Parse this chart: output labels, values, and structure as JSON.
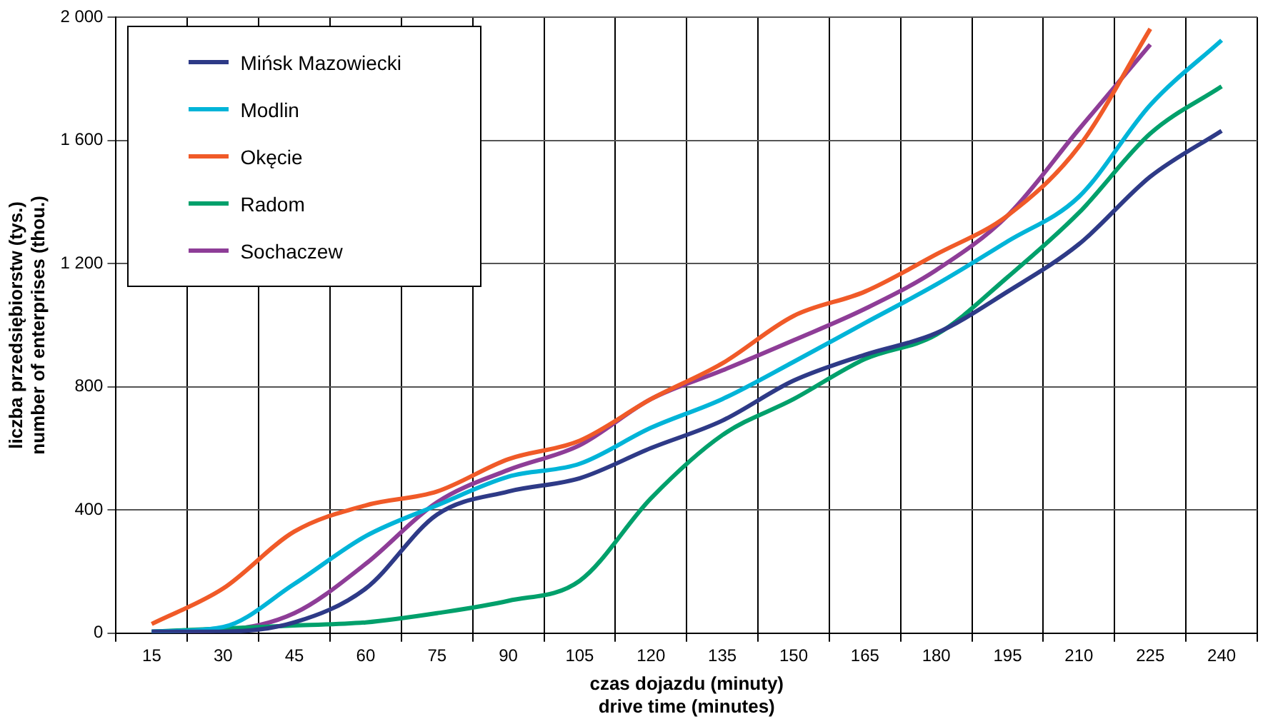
{
  "chart_data": {
    "type": "line",
    "xlabel": "czas dojazdu (minuty)\ndrive time (minutes)",
    "ylabel": "liczba przedsiębiorstw (tys.)\nnumber of enterprises (thou.)",
    "categories": [
      "15",
      "30",
      "45",
      "60",
      "75",
      "90",
      "105",
      "120",
      "135",
      "150",
      "165",
      "180",
      "195",
      "210",
      "225",
      "240"
    ],
    "ylim": [
      0,
      2000
    ],
    "yticks": [
      {
        "value": 0,
        "label": "0"
      },
      {
        "value": 400,
        "label": "400"
      },
      {
        "value": 800,
        "label": "800"
      },
      {
        "value": 1200,
        "label": "1 200"
      },
      {
        "value": 1600,
        "label": "1 600"
      },
      {
        "value": 2000,
        "label": "2 000"
      }
    ],
    "grid": true,
    "legend": "top left",
    "marker": "none",
    "line_style": "solid",
    "series": [
      {
        "name": "Mińsk Mazowiecki",
        "color": "#2e3a87",
        "values": [
          5,
          5,
          35,
          145,
          385,
          460,
          503,
          601,
          690,
          820,
          904,
          974,
          1109,
          1263,
          1482,
          1631
        ]
      },
      {
        "name": "Modlin",
        "color": "#00b4d8",
        "values": [
          5,
          20,
          160,
          315,
          415,
          508,
          550,
          667,
          760,
          881,
          1007,
          1132,
          1272,
          1417,
          1715,
          1925
        ]
      },
      {
        "name": "Okęcie",
        "color": "#f05a28",
        "values": [
          30,
          145,
          330,
          415,
          460,
          565,
          625,
          760,
          876,
          1030,
          1109,
          1230,
          1356,
          1580,
          1962,
          null
        ]
      },
      {
        "name": "Radom",
        "color": "#00a06b",
        "values": [
          5,
          15,
          25,
          35,
          65,
          105,
          170,
          438,
          643,
          760,
          890,
          969,
          1156,
          1365,
          1622,
          1775
        ]
      },
      {
        "name": "Sochaczew",
        "color": "#8e3d97",
        "values": [
          5,
          10,
          65,
          225,
          425,
          530,
          610,
          760,
          853,
          951,
          1053,
          1179,
          1356,
          1636,
          1911,
          null
        ]
      }
    ]
  }
}
